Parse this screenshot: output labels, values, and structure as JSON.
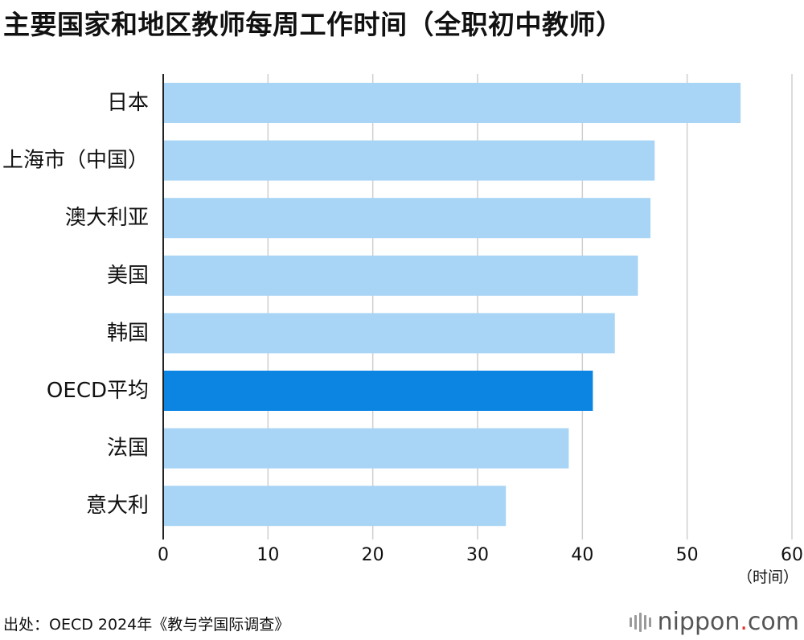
{
  "title": "主要国家和地区教师每周工作时间（全职初中教师）",
  "chart_data": {
    "type": "bar",
    "orientation": "horizontal",
    "title": "主要国家和地区教师每周工作时间（全职初中教师）",
    "categories": [
      "日本",
      "上海市（中国）",
      "澳大利亚",
      "美国",
      "韩国",
      "OECD平均",
      "法国",
      "意大利"
    ],
    "values": [
      55.1,
      46.9,
      46.5,
      45.3,
      43.1,
      41.0,
      38.7,
      32.7
    ],
    "highlight": "OECD平均",
    "xlabel": "（时间）",
    "xlim": [
      0,
      60
    ],
    "xticks": [
      0,
      10,
      20,
      30,
      40,
      50,
      60
    ],
    "grid": true,
    "colors": {
      "bar": "#a8d4f5",
      "highlight": "#0c84e2",
      "grid": "#cfcfcf",
      "axis": "#222222"
    }
  },
  "source": "出处：OECD 2024年《教与学国际调查》",
  "brand": {
    "name": "nippon",
    "dot": ".",
    "tld": "com"
  }
}
